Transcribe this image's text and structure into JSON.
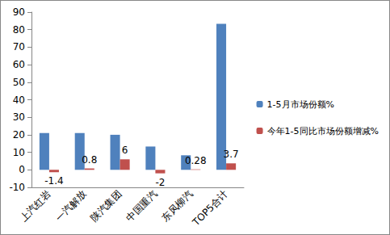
{
  "chart_data": {
    "type": "bar",
    "categories": [
      "上汽红岩",
      "一汽解放",
      "陕汽集团",
      "中国重汽",
      "东风柳汽",
      "TOP5合计"
    ],
    "series": [
      {
        "name": "1-5月市场份额%",
        "color": "#4f81bd",
        "values": [
          21,
          21,
          20,
          13.3,
          8.3,
          83.3
        ]
      },
      {
        "name": "今年1-5同比市场份额增减%",
        "color": "#c0504d",
        "values": [
          -1.4,
          0.8,
          6,
          -2,
          0.28,
          3.7
        ],
        "data_labels": true
      }
    ],
    "ylim": [
      -10,
      90
    ],
    "yticks": [
      -10,
      0,
      10,
      20,
      30,
      40,
      50,
      60,
      70,
      80,
      90
    ],
    "grid": false,
    "legend": "right"
  }
}
